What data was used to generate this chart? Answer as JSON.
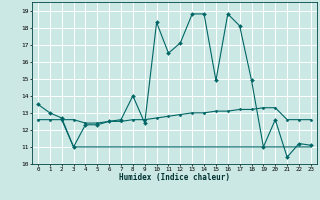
{
  "xlabel": "Humidex (Indice chaleur)",
  "bg_color": "#cce8e4",
  "grid_color": "#aad4cc",
  "line_color": "#006666",
  "xlim": [
    -0.5,
    23.5
  ],
  "ylim": [
    10,
    19.5
  ],
  "yticks": [
    10,
    11,
    12,
    13,
    14,
    15,
    16,
    17,
    18,
    19
  ],
  "xticks": [
    0,
    1,
    2,
    3,
    4,
    5,
    6,
    7,
    8,
    9,
    10,
    11,
    12,
    13,
    14,
    15,
    16,
    17,
    18,
    19,
    20,
    21,
    22,
    23
  ],
  "series1_x": [
    0,
    1,
    2,
    3,
    4,
    5,
    6,
    7,
    8,
    9,
    10,
    11,
    12,
    13,
    14,
    15,
    16,
    17,
    18,
    19,
    20,
    21,
    22,
    23
  ],
  "series1_y": [
    13.5,
    13.0,
    12.7,
    11.0,
    12.3,
    12.3,
    12.5,
    12.6,
    14.0,
    12.4,
    18.3,
    16.5,
    17.1,
    18.8,
    18.8,
    14.9,
    18.8,
    18.1,
    14.9,
    11.0,
    12.6,
    10.4,
    11.2,
    11.1
  ],
  "series2_x": [
    0,
    1,
    2,
    3,
    4,
    5,
    6,
    7,
    8,
    9,
    10,
    11,
    12,
    13,
    14,
    15,
    16,
    17,
    18,
    19,
    20,
    21,
    22,
    23
  ],
  "series2_y": [
    12.6,
    12.6,
    12.6,
    12.6,
    12.4,
    12.4,
    12.5,
    12.5,
    12.6,
    12.6,
    12.7,
    12.8,
    12.9,
    13.0,
    13.0,
    13.1,
    13.1,
    13.2,
    13.2,
    13.3,
    13.3,
    12.6,
    12.6,
    12.6
  ],
  "series3_x": [
    2,
    3,
    4,
    5,
    6,
    7,
    8,
    9,
    10,
    11,
    12,
    13,
    14,
    15,
    16,
    17,
    18,
    19,
    20,
    21,
    22,
    23
  ],
  "series3_y": [
    12.6,
    11.0,
    11.0,
    11.0,
    11.0,
    11.0,
    11.0,
    11.0,
    11.0,
    11.0,
    11.0,
    11.0,
    11.0,
    11.0,
    11.0,
    11.0,
    11.0,
    11.0,
    11.0,
    11.0,
    11.0,
    11.0
  ]
}
